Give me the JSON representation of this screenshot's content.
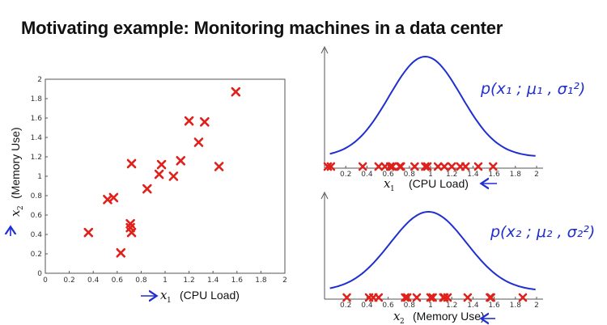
{
  "title": "Motivating example: Monitoring machines in a data center",
  "colors": {
    "marker": "#e0201b",
    "curve": "#1f2fd0",
    "annotation": "#1f2fd0",
    "axis": "#555555"
  },
  "chart_data": [
    {
      "type": "scatter",
      "xlim": [
        0,
        2
      ],
      "ylim": [
        0,
        2
      ],
      "xticks": [
        "0",
        "0.2",
        "0.4",
        "0.6",
        "0.8",
        "1",
        "1.2",
        "1.4",
        "1.6",
        "1.8",
        "2"
      ],
      "yticks": [
        "0",
        "0.2",
        "0.4",
        "0.6",
        "0.8",
        "1",
        "1.2",
        "1.4",
        "1.6",
        "1.8",
        "2"
      ],
      "xlabel": {
        "var": "x",
        "sub": "1",
        "text": "(CPU Load)"
      },
      "ylabel": {
        "var": "x",
        "sub": "2",
        "text": "(Memory Use)"
      },
      "marker": "x",
      "points": [
        [
          0.36,
          0.42
        ],
        [
          0.52,
          0.76
        ],
        [
          0.57,
          0.78
        ],
        [
          0.63,
          0.21
        ],
        [
          0.71,
          0.51
        ],
        [
          0.71,
          0.47
        ],
        [
          0.72,
          0.42
        ],
        [
          0.72,
          1.13
        ],
        [
          0.85,
          0.87
        ],
        [
          0.95,
          1.02
        ],
        [
          0.97,
          1.12
        ],
        [
          1.07,
          1.0
        ],
        [
          1.13,
          1.16
        ],
        [
          1.2,
          1.57
        ],
        [
          1.28,
          1.35
        ],
        [
          1.33,
          1.56
        ],
        [
          1.45,
          1.1
        ],
        [
          1.59,
          1.87
        ]
      ]
    },
    {
      "type": "line",
      "xlim": [
        0,
        2
      ],
      "xticks": [
        "0.2",
        "0.4",
        "0.6",
        "0.8",
        "1",
        "1.2",
        "1.4",
        "1.6",
        "1.8",
        "2"
      ],
      "xlabel": {
        "var": "x",
        "sub": "1",
        "text": "(CPU Load)"
      },
      "annotation": "p(x₁ ; μ₁ , σ₁²)",
      "gaussian": {
        "mean": 0.95,
        "sd": 0.34
      },
      "marker": "x",
      "points": [
        0.03,
        0.06,
        0.36,
        0.51,
        0.57,
        0.62,
        0.64,
        0.71,
        0.72,
        0.85,
        0.95,
        0.97,
        1.07,
        1.13,
        1.2,
        1.28,
        1.33,
        1.45,
        1.59
      ]
    },
    {
      "type": "line",
      "xlim": [
        0,
        2
      ],
      "xticks": [
        "0.2",
        "0.4",
        "0.6",
        "0.8",
        "1",
        "1.2",
        "1.4",
        "1.6",
        "1.8",
        "2"
      ],
      "xlabel": {
        "var": "x",
        "sub": "2",
        "text": "(Memory Use)"
      },
      "annotation": "p(x₂ ; μ₂ , σ₂²)",
      "gaussian": {
        "mean": 0.98,
        "sd": 0.36
      },
      "marker": "x",
      "points": [
        0.21,
        0.42,
        0.46,
        0.51,
        0.76,
        0.78,
        0.87,
        1.0,
        1.02,
        1.12,
        1.13,
        1.16,
        1.35,
        1.56,
        1.57,
        1.87
      ]
    }
  ]
}
